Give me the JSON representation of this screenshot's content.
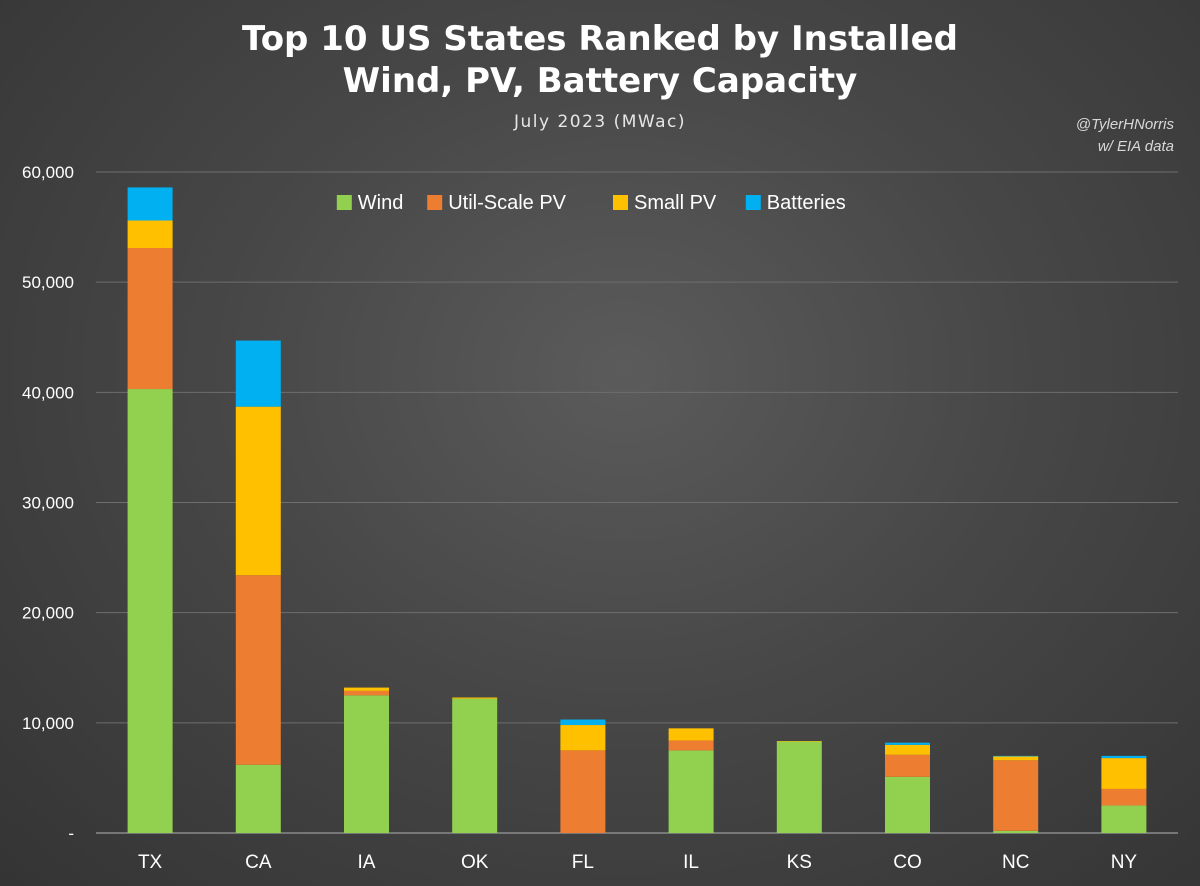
{
  "header": {
    "title_line1": "Top 10 US States Ranked by Installed",
    "title_line2": "Wind, PV, Battery Capacity",
    "subtitle": "July 2023 (MWac)",
    "credit_line1": "@TylerHNorris",
    "credit_line2": "w/ EIA data"
  },
  "chart_data": {
    "type": "bar",
    "stacked": true,
    "title": "Top 10 US States Ranked by Installed Wind, PV, Battery Capacity",
    "subtitle": "July 2023 (MWac)",
    "categories": [
      "TX",
      "CA",
      "IA",
      "OK",
      "FL",
      "IL",
      "KS",
      "CO",
      "NC",
      "NY"
    ],
    "series": [
      {
        "name": "Wind",
        "color": "#92d050",
        "values": [
          40300,
          6200,
          12500,
          12200,
          0,
          7500,
          8300,
          5100,
          200,
          2500
        ]
      },
      {
        "name": "Util-Scale PV",
        "color": "#ed7d31",
        "values": [
          12800,
          17200,
          400,
          0,
          7500,
          900,
          0,
          2000,
          6400,
          1500
        ]
      },
      {
        "name": "Small PV",
        "color": "#ffc000",
        "values": [
          2500,
          15300,
          300,
          100,
          2300,
          1100,
          50,
          900,
          350,
          2800
        ]
      },
      {
        "name": "Batteries",
        "color": "#00b0f0",
        "values": [
          3000,
          6000,
          0,
          0,
          500,
          0,
          0,
          200,
          50,
          200
        ]
      }
    ],
    "ylim": [
      0,
      60000
    ],
    "yticks": [
      0,
      10000,
      20000,
      30000,
      40000,
      50000,
      60000
    ],
    "ytick_labels": [
      "-",
      "10,000",
      "20,000",
      "30,000",
      "40,000",
      "50,000",
      "60,000"
    ],
    "xlabel": "",
    "ylabel": "",
    "grid": true,
    "legend_position": "top-center"
  },
  "colors": {
    "gridline": "#6e6e6e",
    "axis_text": "#ffffff"
  }
}
